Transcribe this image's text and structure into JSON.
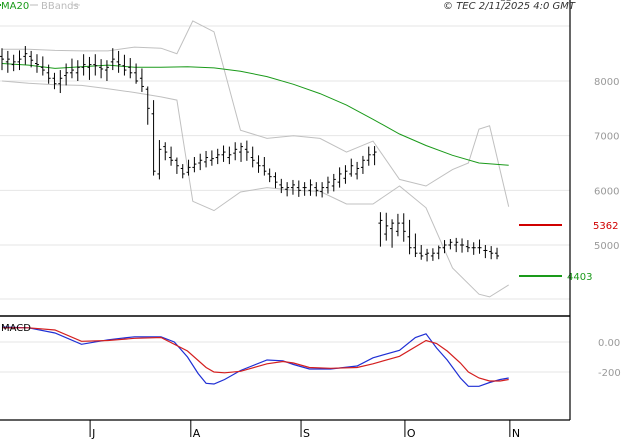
{
  "header": {
    "ma_label": "MA20",
    "bb_label": "BBands",
    "ma_color": "#1a9a1a",
    "bb_color": "#bbbbbb",
    "timestamp": "© TEC 2/11/2025 4:0 GMT"
  },
  "macd_panel": {
    "label": "MACD"
  },
  "colors": {
    "price": "#000000",
    "ma": "#1a9a1a",
    "bbands": "#c0c0c0",
    "grid": "#e6e6e6",
    "resistance": "#d00000",
    "support": "#1a9a1a",
    "macd": "#1f2fd4",
    "signal": "#d41f1f"
  },
  "chart_data": [
    {
      "type": "line",
      "title": "",
      "x_range": [
        0,
        100
      ],
      "x_ticks": [
        {
          "x": 17,
          "label": "J"
        },
        {
          "x": 36,
          "label": "A"
        },
        {
          "x": 56.8,
          "label": "S"
        },
        {
          "x": 76.4,
          "label": "O"
        },
        {
          "x": 96.2,
          "label": "N"
        }
      ],
      "y_range": [
        4000,
        9000
      ],
      "y_ticks": [
        {
          "value": 8000,
          "label": "8000"
        },
        {
          "value": 7000,
          "label": "7000"
        },
        {
          "value": 6000,
          "label": "6000"
        },
        {
          "value": 5000,
          "label": "5000"
        }
      ],
      "grid": true,
      "levels": [
        {
          "name": "resistance",
          "value": 5362,
          "label": "5362"
        },
        {
          "name": "support",
          "value": 4403,
          "label": "4403"
        }
      ],
      "price_x": [
        0,
        1.1,
        2.2,
        3.3,
        4.4,
        5.5,
        6.6,
        7.7,
        8.8,
        9.9,
        11,
        12.1,
        13.2,
        14.3,
        15.4,
        16.5,
        17.6,
        18.7,
        19.8,
        20.9,
        22,
        23.1,
        24.2,
        25.3,
        26.4,
        27.5,
        28.6,
        29.7,
        30.8,
        31.9,
        33,
        34.1,
        35.2,
        36.3,
        37.4,
        38.5,
        39.6,
        40.7,
        41.8,
        42.9,
        44,
        45.1,
        46.2,
        47.3,
        48.4,
        49.5,
        50.5,
        51.6,
        52.7,
        53.8,
        54.9,
        56,
        57.1,
        58.2,
        59.3,
        60.4,
        61.5,
        62.6,
        63.7,
        64.8,
        65.9,
        67,
        68.1,
        69.2,
        70.3,
        71.4,
        72.5,
        73.6,
        74.7,
        75.8,
        76.9,
        78,
        79.1,
        80.2,
        81.3,
        82.4,
        83.5,
        84.6,
        85.7,
        86.8,
        87.9,
        89,
        90.1,
        91.2,
        92.3,
        93.4,
        94.5,
        95.6
      ],
      "series": [
        {
          "name": "Price",
          "style": "ohlc",
          "high": [
            8600,
            8550,
            8480,
            8560,
            8640,
            8550,
            8490,
            8450,
            8300,
            8150,
            8200,
            8320,
            8410,
            8380,
            8490,
            8440,
            8490,
            8400,
            8380,
            8600,
            8550,
            8480,
            8420,
            8320,
            8230,
            7900,
            7650,
            6920,
            6880,
            6800,
            6600,
            6480,
            6560,
            6610,
            6670,
            6720,
            6730,
            6760,
            6820,
            6800,
            6880,
            6870,
            6910,
            6800,
            6640,
            6610,
            6400,
            6330,
            6210,
            6150,
            6190,
            6180,
            6150,
            6200,
            6150,
            6150,
            6250,
            6300,
            6420,
            6460,
            6580,
            6520,
            6630,
            6800,
            6810,
            5600,
            5590,
            5470,
            5570,
            5580,
            5460,
            5210,
            5000,
            4930,
            4940,
            4990,
            5090,
            5110,
            5130,
            5120,
            5090,
            5050,
            5100,
            5000,
            4980,
            4950
          ],
          "low": [
            8200,
            8150,
            8180,
            8200,
            8300,
            8250,
            8150,
            8100,
            7950,
            7850,
            7780,
            7920,
            8050,
            8000,
            8100,
            8020,
            8100,
            8050,
            8000,
            8200,
            8150,
            8100,
            8050,
            7950,
            7800,
            7200,
            6270,
            6200,
            6550,
            6450,
            6300,
            6220,
            6270,
            6330,
            6370,
            6420,
            6450,
            6480,
            6520,
            6480,
            6550,
            6520,
            6540,
            6420,
            6320,
            6270,
            6150,
            6040,
            5950,
            5890,
            5920,
            5880,
            5900,
            5900,
            5890,
            5870,
            5940,
            5980,
            6050,
            6120,
            6250,
            6200,
            6300,
            6450,
            6460,
            4970,
            5080,
            4950,
            5160,
            5060,
            4830,
            4780,
            4730,
            4700,
            4710,
            4740,
            4850,
            4920,
            4870,
            4860,
            4870,
            4820,
            4840,
            4760,
            4740,
            4740
          ],
          "open": [
            8450,
            8350,
            8300,
            8350,
            8450,
            8450,
            8320,
            8250,
            8150,
            8050,
            7950,
            8100,
            8150,
            8150,
            8250,
            8250,
            8300,
            8250,
            8200,
            8350,
            8350,
            8280,
            8250,
            8150,
            8050,
            7850,
            7400,
            6300,
            6800,
            6600,
            6550,
            6400,
            6330,
            6420,
            6500,
            6520,
            6550,
            6600,
            6650,
            6600,
            6680,
            6700,
            6750,
            6600,
            6500,
            6450,
            6300,
            6250,
            6100,
            6020,
            6050,
            6050,
            6050,
            6000,
            6050,
            5980,
            6050,
            6080,
            6150,
            6220,
            6300,
            6300,
            6420,
            6550,
            6650,
            5400,
            5200,
            5300,
            5250,
            5400,
            5150,
            4950,
            4850,
            4830,
            4800,
            4850,
            4950,
            5000,
            5000,
            5000,
            4970,
            4950,
            4950,
            4900,
            4880,
            4850
          ],
          "close": [
            8400,
            8400,
            8350,
            8400,
            8500,
            8380,
            8300,
            8200,
            8050,
            7950,
            8050,
            8150,
            8200,
            8250,
            8300,
            8300,
            8280,
            8220,
            8250,
            8400,
            8300,
            8200,
            8150,
            8000,
            7900,
            7500,
            6350,
            6750,
            6700,
            6550,
            6450,
            6300,
            6420,
            6480,
            6550,
            6600,
            6580,
            6650,
            6700,
            6650,
            6750,
            6800,
            6700,
            6550,
            6450,
            6350,
            6250,
            6150,
            6050,
            6050,
            6100,
            6000,
            6050,
            6100,
            6000,
            6050,
            6150,
            6200,
            6300,
            6350,
            6450,
            6400,
            6550,
            6650,
            6700,
            5450,
            5350,
            5400,
            5400,
            5250,
            4950,
            4850,
            4800,
            4850,
            4850,
            4950,
            5000,
            5050,
            5050,
            5000,
            4950,
            4950,
            4950,
            4900,
            4850,
            4800
          ]
        },
        {
          "name": "MA20",
          "color": "#1a9a1a",
          "x": [
            0,
            5,
            10,
            15,
            20,
            25,
            30,
            35,
            40,
            45,
            50,
            55,
            60,
            65,
            70,
            75,
            80,
            85,
            90,
            95.6
          ],
          "y": [
            8320,
            8290,
            8230,
            8260,
            8290,
            8250,
            8250,
            8260,
            8240,
            8180,
            8080,
            7940,
            7770,
            7560,
            7300,
            7030,
            6820,
            6640,
            6500,
            6460
          ]
        },
        {
          "name": "BBands upper",
          "color": "#c0c0c0",
          "x": [
            0,
            5,
            10,
            15,
            20,
            25,
            30,
            33,
            36,
            40,
            45,
            50,
            55,
            60,
            65,
            70,
            75,
            80,
            85,
            88,
            90,
            92,
            95.6
          ],
          "y": [
            8580,
            8580,
            8560,
            8550,
            8550,
            8620,
            8600,
            8500,
            9100,
            8900,
            7100,
            6950,
            7000,
            6950,
            6700,
            6900,
            6200,
            6080,
            6380,
            6500,
            7120,
            7180,
            5700
          ]
        },
        {
          "name": "BBands lower",
          "color": "#c0c0c0",
          "x": [
            0,
            5,
            10,
            15,
            20,
            25,
            30,
            33,
            36,
            40,
            45,
            50,
            55,
            60,
            65,
            70,
            75,
            80,
            85,
            90,
            92,
            95.6
          ],
          "y": [
            8000,
            7960,
            7930,
            7920,
            7860,
            7790,
            7710,
            7650,
            5800,
            5630,
            5970,
            6050,
            6000,
            5980,
            5750,
            5750,
            6080,
            5680,
            4580,
            4100,
            4050,
            4270
          ]
        }
      ]
    },
    {
      "type": "line",
      "title": "MACD",
      "x_range": [
        0,
        100
      ],
      "y_range": [
        -400,
        150
      ],
      "y_ticks": [
        {
          "value": 0,
          "label": "0.00"
        },
        {
          "value": -200,
          "label": "-200"
        }
      ],
      "series": [
        {
          "name": "MACD",
          "color": "#1f2fd4",
          "x": [
            0,
            5,
            10,
            15,
            20,
            25,
            30,
            32.5,
            35,
            37,
            38.5,
            40,
            42,
            45,
            50,
            53,
            55,
            58,
            62,
            67,
            70,
            75,
            78,
            80,
            82,
            84,
            86.5,
            88,
            90,
            92,
            94,
            95.6
          ],
          "y": [
            100,
            95,
            60,
            -15,
            15,
            35,
            35,
            0,
            -100,
            -210,
            -275,
            -280,
            -250,
            -190,
            -120,
            -125,
            -150,
            -180,
            -180,
            -160,
            -105,
            -55,
            30,
            55,
            -40,
            -120,
            -240,
            -295,
            -295,
            -270,
            -250,
            -240
          ]
        },
        {
          "name": "Signal",
          "color": "#d41f1f",
          "x": [
            0,
            5,
            10,
            15,
            20,
            25,
            30,
            35,
            38.5,
            40,
            42,
            45,
            50,
            53,
            55,
            58,
            62,
            67,
            70,
            75,
            80,
            82,
            84,
            86.5,
            88,
            90,
            92,
            94,
            95.6
          ],
          "y": [
            95,
            95,
            80,
            5,
            10,
            25,
            30,
            -60,
            -170,
            -200,
            -205,
            -195,
            -145,
            -130,
            -140,
            -170,
            -175,
            -170,
            -145,
            -95,
            10,
            -10,
            -60,
            -140,
            -200,
            -240,
            -260,
            -260,
            -250
          ]
        }
      ]
    }
  ]
}
